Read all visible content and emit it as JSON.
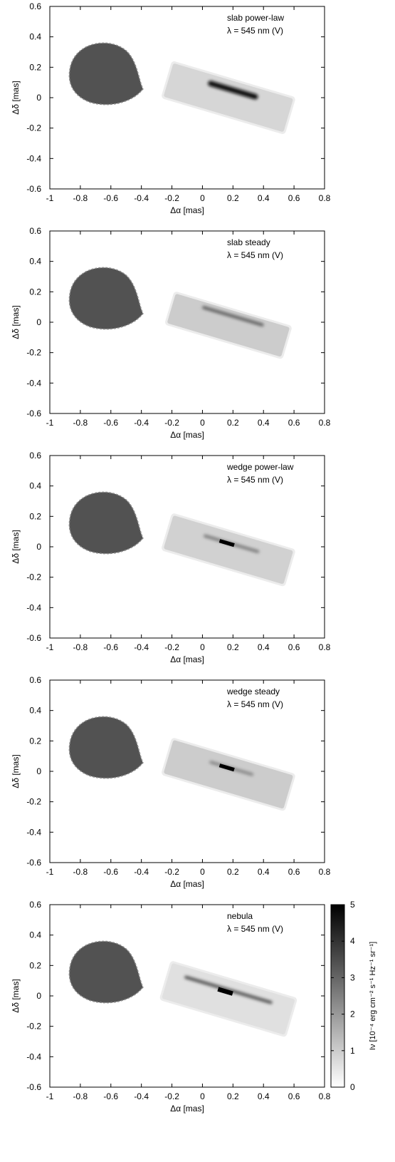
{
  "colors": {
    "background": "#ffffff",
    "axis": "#000000"
  },
  "chart_data": [
    {
      "type": "heatmap",
      "annotation": [
        "slab power-law",
        "λ = 545 nm (V)"
      ],
      "xlabel": "Δα [mas]",
      "ylabel": "Δδ [mas]",
      "xlim": [
        -1,
        0.8
      ],
      "ylim": [
        -0.6,
        0.6
      ],
      "xticks": [
        "-1",
        "-0.8",
        "-0.6",
        "-0.4",
        "-0.2",
        "0",
        "0.2",
        "0.4",
        "0.6",
        "0.8"
      ],
      "yticks": [
        "0.6",
        "0.4",
        "0.2",
        "0",
        "-0.2",
        "-0.4",
        "-0.6"
      ],
      "star": {
        "center": [
          -0.66,
          0.16
        ],
        "intensity": 3.4
      },
      "disk": {
        "center": [
          0.17,
          0.0
        ],
        "length_mas": 0.82,
        "width_mas": 0.17,
        "pa_deg": -16.5,
        "intensity": 0.8,
        "features": [
          {
            "kind": "ridge",
            "at": [
              0.2,
              0.05
            ],
            "length_mas": 0.34,
            "width_mas": 0.035,
            "intensity": 4.8
          }
        ]
      }
    },
    {
      "type": "heatmap",
      "annotation": [
        "slab steady",
        "λ = 545 nm (V)"
      ],
      "xlabel": "Δα [mas]",
      "ylabel": "Δδ [mas]",
      "xlim": [
        -1,
        0.8
      ],
      "ylim": [
        -0.6,
        0.6
      ],
      "xticks": [
        "-1",
        "-0.8",
        "-0.6",
        "-0.4",
        "-0.2",
        "0",
        "0.2",
        "0.4",
        "0.6",
        "0.8"
      ],
      "yticks": [
        "0.6",
        "0.4",
        "0.2",
        "0",
        "-0.2",
        "-0.4",
        "-0.6"
      ],
      "star": {
        "center": [
          -0.66,
          0.16
        ],
        "intensity": 3.4
      },
      "disk": {
        "center": [
          0.17,
          -0.02
        ],
        "length_mas": 0.78,
        "width_mas": 0.15,
        "pa_deg": -16.5,
        "intensity": 1.0,
        "features": [
          {
            "kind": "ridge",
            "at": [
              0.2,
              0.04
            ],
            "length_mas": 0.42,
            "width_mas": 0.02,
            "intensity": 3.2
          }
        ]
      }
    },
    {
      "type": "heatmap",
      "annotation": [
        "wedge power-law",
        "λ = 545 nm (V)"
      ],
      "xlabel": "Δα [mas]",
      "ylabel": "Δδ [mas]",
      "xlim": [
        -1,
        0.8
      ],
      "ylim": [
        -0.6,
        0.6
      ],
      "xticks": [
        "-1",
        "-0.8",
        "-0.6",
        "-0.4",
        "-0.2",
        "0",
        "0.2",
        "0.4",
        "0.6",
        "0.8"
      ],
      "yticks": [
        "0.6",
        "0.4",
        "0.2",
        "0",
        "-0.2",
        "-0.4",
        "-0.6"
      ],
      "star": {
        "center": [
          -0.66,
          0.16
        ],
        "intensity": 3.4
      },
      "disk": {
        "center": [
          0.17,
          -0.02
        ],
        "length_mas": 0.82,
        "width_mas": 0.17,
        "pa_deg": -16.5,
        "intensity": 0.9,
        "features": [
          {
            "kind": "ridge",
            "at": [
              0.19,
              0.02
            ],
            "length_mas": 0.38,
            "width_mas": 0.02,
            "intensity": 2.6
          },
          {
            "kind": "spot",
            "at": [
              0.16,
              0.025
            ],
            "length_mas": 0.1,
            "width_mas": 0.025,
            "intensity": 5.0
          }
        ]
      }
    },
    {
      "type": "heatmap",
      "annotation": [
        "wedge steady",
        "λ = 545 nm (V)"
      ],
      "xlabel": "Δα [mas]",
      "ylabel": "Δδ [mas]",
      "xlim": [
        -1,
        0.8
      ],
      "ylim": [
        -0.6,
        0.6
      ],
      "xticks": [
        "-1",
        "-0.8",
        "-0.6",
        "-0.4",
        "-0.2",
        "0",
        "0.2",
        "0.4",
        "0.6",
        "0.8"
      ],
      "yticks": [
        "0.6",
        "0.4",
        "0.2",
        "0",
        "-0.2",
        "-0.4",
        "-0.6"
      ],
      "star": {
        "center": [
          -0.66,
          0.16
        ],
        "intensity": 3.4
      },
      "disk": {
        "center": [
          0.17,
          -0.02
        ],
        "length_mas": 0.82,
        "width_mas": 0.17,
        "pa_deg": -16.5,
        "intensity": 1.0,
        "features": [
          {
            "kind": "ridge",
            "at": [
              0.19,
              0.02
            ],
            "length_mas": 0.3,
            "width_mas": 0.02,
            "intensity": 2.4
          },
          {
            "kind": "spot",
            "at": [
              0.16,
              0.025
            ],
            "length_mas": 0.1,
            "width_mas": 0.025,
            "intensity": 5.0
          }
        ]
      }
    },
    {
      "type": "heatmap",
      "annotation": [
        "nebula",
        "λ = 545 nm (V)"
      ],
      "xlabel": "Δα [mas]",
      "ylabel": "Δδ [mas]",
      "xlim": [
        -1,
        0.8
      ],
      "ylim": [
        -0.6,
        0.6
      ],
      "xticks": [
        "-1",
        "-0.8",
        "-0.6",
        "-0.4",
        "-0.2",
        "0",
        "0.2",
        "0.4",
        "0.6",
        "0.8"
      ],
      "yticks": [
        "0.6",
        "0.4",
        "0.2",
        "0",
        "-0.2",
        "-0.4",
        "-0.6"
      ],
      "star": {
        "center": [
          -0.66,
          0.16
        ],
        "intensity": 3.4
      },
      "disk": {
        "center": [
          0.17,
          -0.02
        ],
        "length_mas": 0.84,
        "width_mas": 0.18,
        "pa_deg": -16.5,
        "intensity": 0.6,
        "features": [
          {
            "kind": "ridge",
            "at": [
              0.17,
              0.04
            ],
            "length_mas": 0.6,
            "width_mas": 0.02,
            "intensity": 3.5
          },
          {
            "kind": "spot",
            "at": [
              0.15,
              0.03
            ],
            "length_mas": 0.1,
            "width_mas": 0.03,
            "intensity": 5.0
          }
        ]
      },
      "colorbar": {
        "label": "Iν [10⁻⁴ erg cm⁻² s⁻¹ Hz⁻¹ sr⁻¹]",
        "range": [
          0,
          5
        ],
        "ticks": [
          "0",
          "1",
          "2",
          "3",
          "4",
          "5"
        ]
      }
    }
  ]
}
